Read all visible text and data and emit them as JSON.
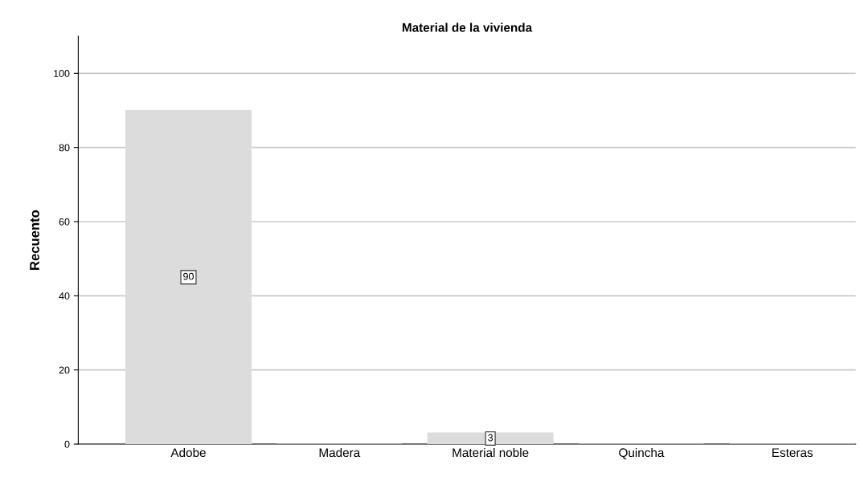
{
  "chart_data": {
    "type": "bar",
    "title": "Material de la vivienda",
    "ylabel": "Recuento",
    "categories": [
      "Adobe",
      "Madera",
      "Material noble",
      "Quincha",
      "Esteras"
    ],
    "values": [
      90,
      0,
      3,
      0,
      0
    ],
    "value_labels": [
      "90",
      null,
      "3",
      null,
      null
    ],
    "color": "#dcdcdc",
    "ylim": [
      0,
      110
    ],
    "yticks": [
      0,
      20,
      40,
      60,
      80,
      100
    ],
    "grid": "y"
  }
}
